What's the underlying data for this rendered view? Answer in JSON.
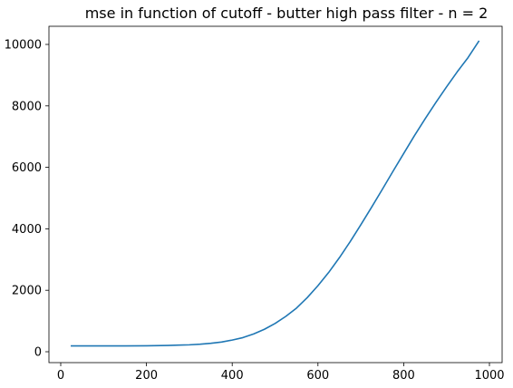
{
  "chart_data": {
    "type": "line",
    "title": "mse in function of cutoff - butter high pass filter - n = 2",
    "xlabel": "",
    "ylabel": "",
    "xlim": [
      0,
      1000
    ],
    "ylim": [
      0,
      10000
    ],
    "x_ticks": [
      0,
      200,
      400,
      600,
      800,
      1000
    ],
    "y_ticks": [
      0,
      2000,
      4000,
      6000,
      8000,
      10000
    ],
    "grid": false,
    "legend": "none",
    "series": [
      {
        "color": "#1f77b4",
        "x": [
          25,
          50,
          100,
          150,
          200,
          250,
          275,
          300,
          325,
          350,
          375,
          400,
          425,
          450,
          475,
          500,
          525,
          550,
          575,
          600,
          625,
          650,
          675,
          700,
          725,
          750,
          775,
          800,
          825,
          850,
          875,
          900,
          925,
          950,
          975
        ],
        "y": [
          190,
          190,
          190,
          190,
          195,
          205,
          215,
          225,
          245,
          275,
          315,
          380,
          460,
          580,
          730,
          920,
          1150,
          1420,
          1760,
          2150,
          2580,
          3060,
          3580,
          4130,
          4700,
          5280,
          5870,
          6450,
          7030,
          7580,
          8110,
          8620,
          9110,
          9570,
          10100
        ]
      }
    ]
  }
}
